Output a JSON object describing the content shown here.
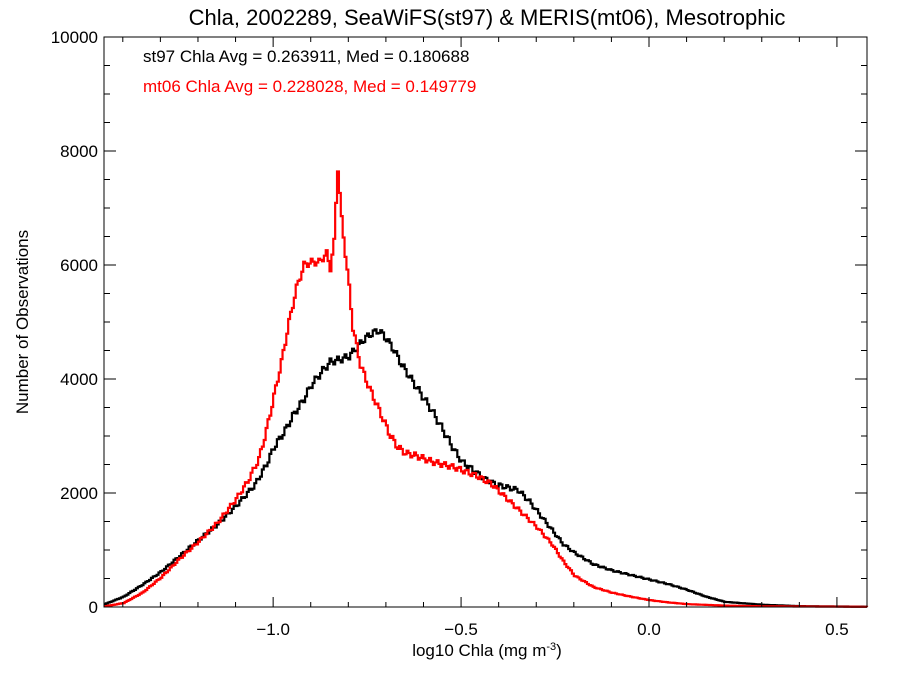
{
  "chart_data": {
    "type": "line",
    "title": "Chla, 2002289, SeaWiFS(st97) & MERIS(mt06), Mesotrophic",
    "xlabel": "log10 Chla (mg m",
    "xlabel_sup": "-3",
    "xlabel_end": ")",
    "ylabel": "Number of Observations",
    "xlim": [
      -1.45,
      0.58
    ],
    "ylim": [
      0,
      10000
    ],
    "x_ticks": [
      -1.0,
      -0.5,
      0.0,
      0.5
    ],
    "x_tick_labels": [
      "−1.0",
      "−0.5",
      "0.0",
      "0.5"
    ],
    "y_ticks": [
      0,
      2000,
      4000,
      6000,
      8000,
      10000
    ],
    "y_tick_labels": [
      "0",
      "2000",
      "4000",
      "6000",
      "8000",
      "10000"
    ],
    "grid": false,
    "annotations": [
      {
        "text": "st97 Chla Avg = 0.263911, Med = 0.180688",
        "color": "#000000"
      },
      {
        "text": "mt06 Chla Avg = 0.228028, Med = 0.149779",
        "color": "#ff0000"
      }
    ],
    "series": [
      {
        "name": "st97",
        "color": "#000000",
        "points": [
          [
            -1.45,
            50
          ],
          [
            -1.4,
            180
          ],
          [
            -1.35,
            390
          ],
          [
            -1.3,
            620
          ],
          [
            -1.25,
            900
          ],
          [
            -1.2,
            1180
          ],
          [
            -1.15,
            1450
          ],
          [
            -1.1,
            1780
          ],
          [
            -1.05,
            2150
          ],
          [
            -1.02,
            2500
          ],
          [
            -1.0,
            2800
          ],
          [
            -0.97,
            3100
          ],
          [
            -0.95,
            3350
          ],
          [
            -0.92,
            3650
          ],
          [
            -0.9,
            3900
          ],
          [
            -0.87,
            4150
          ],
          [
            -0.85,
            4300
          ],
          [
            -0.82,
            4350
          ],
          [
            -0.8,
            4400
          ],
          [
            -0.78,
            4550
          ],
          [
            -0.76,
            4700
          ],
          [
            -0.74,
            4800
          ],
          [
            -0.72,
            4850
          ],
          [
            -0.7,
            4700
          ],
          [
            -0.68,
            4500
          ],
          [
            -0.66,
            4250
          ],
          [
            -0.64,
            4050
          ],
          [
            -0.62,
            3850
          ],
          [
            -0.6,
            3650
          ],
          [
            -0.58,
            3450
          ],
          [
            -0.55,
            3100
          ],
          [
            -0.52,
            2750
          ],
          [
            -0.5,
            2550
          ],
          [
            -0.47,
            2400
          ],
          [
            -0.44,
            2250
          ],
          [
            -0.41,
            2150
          ],
          [
            -0.38,
            2100
          ],
          [
            -0.35,
            2050
          ],
          [
            -0.32,
            1850
          ],
          [
            -0.29,
            1600
          ],
          [
            -0.26,
            1350
          ],
          [
            -0.23,
            1100
          ],
          [
            -0.2,
            950
          ],
          [
            -0.15,
            750
          ],
          [
            -0.1,
            640
          ],
          [
            -0.05,
            560
          ],
          [
            0.0,
            480
          ],
          [
            0.05,
            400
          ],
          [
            0.1,
            300
          ],
          [
            0.15,
            180
          ],
          [
            0.2,
            90
          ],
          [
            0.3,
            40
          ],
          [
            0.4,
            15
          ],
          [
            0.58,
            5
          ]
        ]
      },
      {
        "name": "mt06",
        "color": "#ff0000",
        "points": [
          [
            -1.45,
            10
          ],
          [
            -1.4,
            70
          ],
          [
            -1.35,
            250
          ],
          [
            -1.3,
            520
          ],
          [
            -1.25,
            850
          ],
          [
            -1.2,
            1150
          ],
          [
            -1.15,
            1480
          ],
          [
            -1.1,
            1900
          ],
          [
            -1.07,
            2200
          ],
          [
            -1.04,
            2600
          ],
          [
            -1.02,
            3100
          ],
          [
            -1.0,
            3700
          ],
          [
            -0.98,
            4300
          ],
          [
            -0.96,
            5000
          ],
          [
            -0.94,
            5600
          ],
          [
            -0.92,
            6000
          ],
          [
            -0.9,
            6050
          ],
          [
            -0.88,
            6050
          ],
          [
            -0.86,
            6200
          ],
          [
            -0.85,
            5950
          ],
          [
            -0.84,
            6400
          ],
          [
            -0.835,
            7100
          ],
          [
            -0.83,
            7700
          ],
          [
            -0.82,
            6800
          ],
          [
            -0.81,
            6200
          ],
          [
            -0.8,
            5600
          ],
          [
            -0.79,
            4900
          ],
          [
            -0.77,
            4250
          ],
          [
            -0.75,
            3900
          ],
          [
            -0.73,
            3600
          ],
          [
            -0.71,
            3300
          ],
          [
            -0.69,
            3000
          ],
          [
            -0.67,
            2800
          ],
          [
            -0.65,
            2700
          ],
          [
            -0.62,
            2650
          ],
          [
            -0.58,
            2550
          ],
          [
            -0.55,
            2500
          ],
          [
            -0.52,
            2450
          ],
          [
            -0.5,
            2400
          ],
          [
            -0.46,
            2300
          ],
          [
            -0.42,
            2150
          ],
          [
            -0.38,
            1900
          ],
          [
            -0.34,
            1650
          ],
          [
            -0.3,
            1400
          ],
          [
            -0.26,
            1100
          ],
          [
            -0.23,
            800
          ],
          [
            -0.2,
            550
          ],
          [
            -0.15,
            350
          ],
          [
            -0.1,
            250
          ],
          [
            -0.05,
            180
          ],
          [
            0.0,
            120
          ],
          [
            0.05,
            80
          ],
          [
            0.1,
            50
          ],
          [
            0.2,
            25
          ],
          [
            0.3,
            12
          ],
          [
            0.58,
            3
          ]
        ]
      }
    ]
  }
}
